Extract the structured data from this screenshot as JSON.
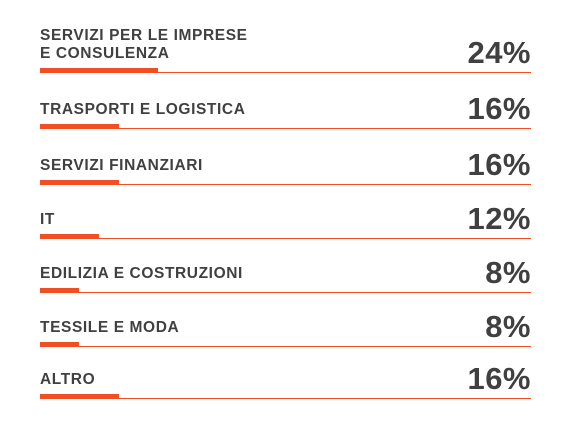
{
  "chart_data": {
    "type": "bar",
    "orientation": "horizontal",
    "categories": [
      "SERVIZI PER LE IMPRESE\nE CONSULENZA",
      "TRASPORTI E LOGISTICA",
      "SERVIZI FINANZIARI",
      "IT",
      "EDILIZIA E COSTRUZIONI",
      "TESSILE E MODA",
      "ALTRO"
    ],
    "values": [
      24,
      16,
      16,
      12,
      8,
      8,
      16
    ],
    "value_labels": [
      "24%",
      "16%",
      "16%",
      "12%",
      "8%",
      "8%",
      "16%"
    ],
    "unit": "%",
    "xlim": [
      0,
      100
    ],
    "grid": false,
    "legend": "none",
    "colors": {
      "bar": "#f04e23",
      "text": "#404040"
    }
  }
}
